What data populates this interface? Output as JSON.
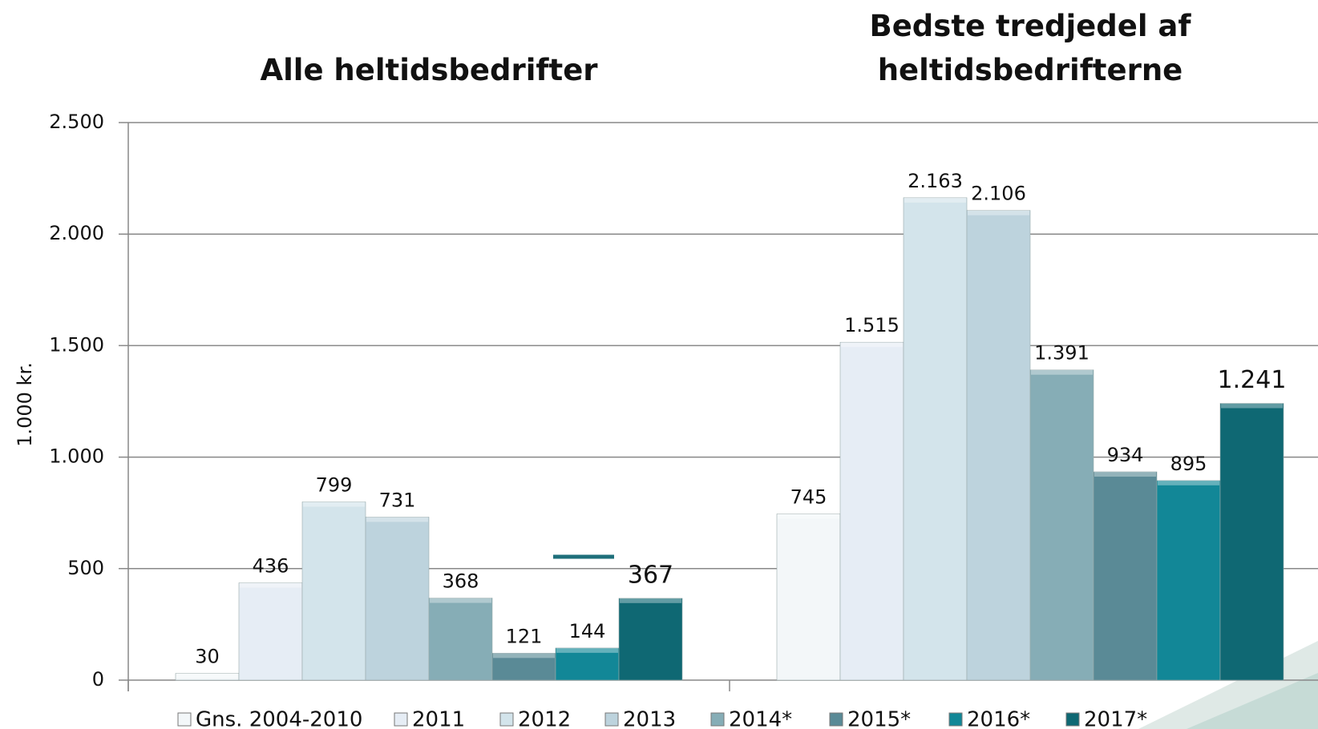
{
  "chart_data": {
    "type": "bar",
    "categories": [
      "Alle heltidsbedrifter",
      "Bedste tredjedel af heltidsbedrifterne"
    ],
    "y_label": "1.000 kr.",
    "ylim": [
      0,
      2500
    ],
    "yticks": [
      0,
      {
        "value": 500,
        "label": "500"
      },
      {
        "value": 1000,
        "label": "1.000"
      },
      {
        "value": 1500,
        "label": "1.500"
      },
      {
        "value": 2000,
        "label": "2.000"
      },
      {
        "value": 2500,
        "label": "2.500"
      }
    ],
    "grid": true,
    "legend": "bottom",
    "series": [
      {
        "name": "Gns. 2004-2010",
        "color": "#f3f7f9",
        "values": [
          30,
          745
        ],
        "value_labels": [
          "30",
          "745"
        ]
      },
      {
        "name": "2011",
        "color": "#e6edf5",
        "values": [
          436,
          1515
        ],
        "value_labels": [
          "436",
          "1.515"
        ]
      },
      {
        "name": "2012",
        "color": "#d3e4eb",
        "values": [
          799,
          2163
        ],
        "value_labels": [
          "799",
          "2.163"
        ]
      },
      {
        "name": "2013",
        "color": "#bdd3dd",
        "values": [
          731,
          2106
        ],
        "value_labels": [
          "731",
          "2.106"
        ]
      },
      {
        "name": "2014*",
        "color": "#86adb6",
        "values": [
          368,
          1391
        ],
        "value_labels": [
          "368",
          "1.391"
        ]
      },
      {
        "name": "2015*",
        "color": "#5a8a96",
        "values": [
          121,
          934
        ],
        "value_labels": [
          "121",
          "934"
        ]
      },
      {
        "name": "2016*",
        "color": "#128797",
        "values": [
          144,
          895
        ],
        "value_labels": [
          "144",
          "895"
        ]
      },
      {
        "name": "2017*",
        "color": "#0f6873",
        "values": [
          367,
          1241
        ],
        "value_labels": [
          "367",
          "1.241"
        ]
      }
    ]
  }
}
